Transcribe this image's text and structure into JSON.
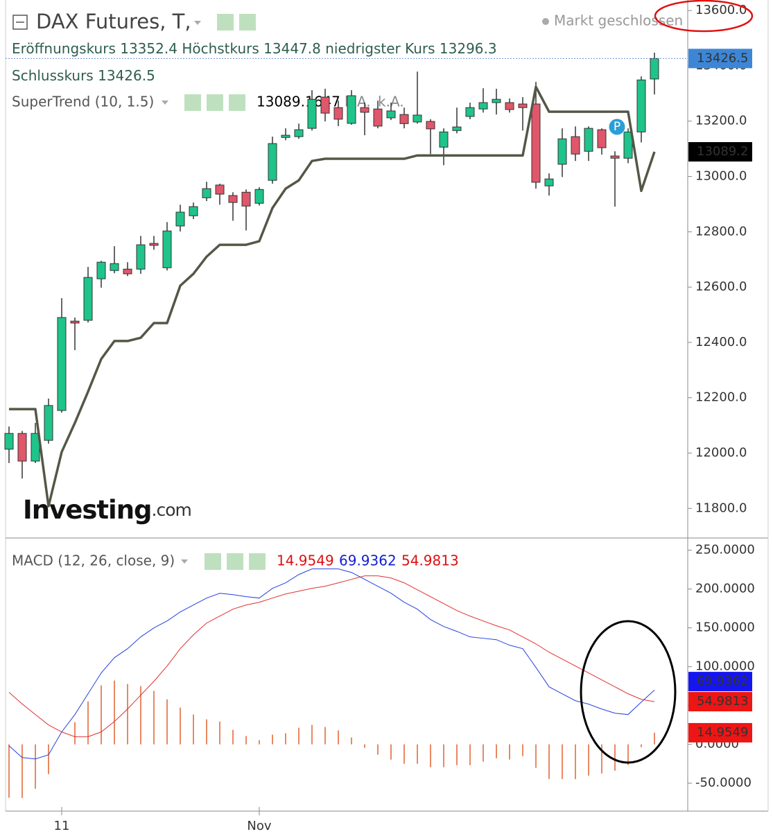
{
  "header": {
    "title": "DAX Futures, T,",
    "status": "Markt geschlossen",
    "open_label": "Eröffnungskurs",
    "high_label": "Höchstkurs",
    "low_label": "niedrigster Kurs",
    "close_label": "Schlusskurs"
  },
  "chart_data": [
    {
      "type": "candlestick",
      "categories": [
        null,
        null,
        null,
        null,
        "11",
        null,
        null,
        null,
        null,
        null,
        null,
        null,
        null,
        null,
        null,
        null,
        null,
        null,
        null,
        "Nov",
        null,
        null,
        null,
        null,
        null,
        null,
        null,
        null,
        null,
        null,
        null,
        null,
        null,
        null,
        null,
        null,
        null,
        null,
        null,
        null,
        null,
        null,
        null,
        null,
        null,
        null,
        null,
        null,
        null,
        null
      ],
      "open": [
        12014,
        12071,
        11971,
        12046,
        12154,
        12477,
        12480,
        12630,
        12660,
        12665,
        12665,
        12758,
        12670,
        12821,
        12858,
        12923,
        12969,
        12931,
        12943,
        12903,
        12986,
        13141,
        13144,
        13174,
        13287,
        13249,
        13192,
        13249,
        13244,
        13212,
        13224,
        13197,
        13199,
        13106,
        13166,
        13217,
        13244,
        13267,
        13267,
        13262,
        13262,
        12966,
        13044,
        13144,
        13091,
        13169,
        13074,
        13066,
        13161,
        13352.4
      ],
      "high": [
        12096,
        12080,
        12109,
        12197,
        12560,
        12490,
        12673,
        12695,
        12748,
        12690,
        12785,
        12785,
        12835,
        12898,
        12906,
        12981,
        12974,
        12943,
        12953,
        12961,
        13144,
        13174,
        13191,
        13312,
        13317,
        13274,
        13312,
        13267,
        13274,
        13267,
        13249,
        13379,
        13207,
        13174,
        13249,
        13267,
        13319,
        13317,
        13282,
        13287,
        13342,
        13011,
        13174,
        13181,
        13181,
        13174,
        13091,
        13174,
        13362,
        13447.8
      ],
      "low": [
        11964,
        11908,
        11964,
        12034,
        12146,
        12372,
        12472,
        12598,
        12650,
        12640,
        12648,
        12735,
        12660,
        12801,
        12846,
        12911,
        12898,
        12840,
        12805,
        12895,
        12974,
        13131,
        13136,
        13166,
        13199,
        13182,
        13187,
        13149,
        13174,
        13204,
        13174,
        13191,
        13081,
        13041,
        13156,
        13207,
        13231,
        13224,
        13231,
        13166,
        12956,
        12931,
        12998,
        13056,
        13056,
        13079,
        12891,
        13048,
        13123,
        13296.3
      ],
      "close": [
        12071,
        11971,
        12071,
        12172,
        12490,
        12470,
        12635,
        12690,
        12685,
        12648,
        12753,
        12751,
        12803,
        12871,
        12891,
        12956,
        12936,
        12906,
        12893,
        12953,
        13119,
        13149,
        13169,
        13279,
        13229,
        13207,
        13292,
        13232,
        13182,
        13237,
        13191,
        13222,
        13172,
        13161,
        13179,
        13249,
        13267,
        13279,
        13242,
        13249,
        12979,
        12991,
        13136,
        13081,
        13174,
        13104,
        13066,
        13161,
        13349,
        13426.5
      ],
      "up_color": "#1fc48a",
      "down_color": "#e0566a",
      "series": [
        {
          "name": "SuperTrend (10, 1.5)",
          "color": "#535846",
          "last_label": "13089.2",
          "na_labels": [
            "k.A.",
            "k.A."
          ],
          "values": [
            12159,
            12159,
            12159,
            11808,
            12004,
            12109,
            12222,
            12340,
            12405,
            12405,
            12417,
            12470,
            12470,
            12605,
            12648,
            12710,
            12753,
            12753,
            12753,
            12766,
            12886,
            12956,
            12986,
            13056,
            13064,
            13064,
            13064,
            13064,
            13064,
            13064,
            13064,
            13076,
            13076,
            13076,
            13076,
            13076,
            13076,
            13076,
            13076,
            13076,
            13324,
            13234,
            13234,
            13234,
            13234,
            13234,
            13234,
            13234,
            12948,
            13089.1647
          ]
        }
      ],
      "annotation": "P",
      "watermark": "Investing",
      "watermark_suffix": ".com",
      "ylim": [
        11693,
        13638
      ],
      "yticks": [
        {
          "value": 11800,
          "label": "11800.0"
        },
        {
          "value": 12000,
          "label": "12000.0"
        },
        {
          "value": 12200,
          "label": "12200.0"
        },
        {
          "value": 12400,
          "label": "12400.0"
        },
        {
          "value": 12600,
          "label": "12600.0"
        },
        {
          "value": 12800,
          "label": "12800.0"
        },
        {
          "value": 13000,
          "label": "13000.0"
        },
        {
          "value": 13200,
          "label": "13200.0"
        },
        {
          "value": 13400,
          "label": "13400.0"
        },
        {
          "value": 13600,
          "label": "13600.0"
        }
      ]
    },
    {
      "type": "macd",
      "title": "MACD (12, 26, close, 9)",
      "series": [
        {
          "style": "histogram",
          "color": "#e0602e",
          "values": [
            -68.8,
            -69,
            -57.2,
            -38.4,
            0,
            28.6,
            55.3,
            76,
            82.2,
            77.7,
            75,
            68.8,
            58,
            47.3,
            38.4,
            32.2,
            29.4,
            18.7,
            10.7,
            5.4,
            12.5,
            14.3,
            21.4,
            25,
            22.3,
            17.9,
            8.9,
            -4.5,
            -13.4,
            -19.7,
            -25,
            -25,
            -29.5,
            -29.4,
            -26.8,
            -26.8,
            -22.3,
            -17.9,
            -19.6,
            -15.2,
            -30.3,
            -44.6,
            -44.7,
            -44.7,
            -40.2,
            -37.5,
            -34,
            -26.7,
            -3.6,
            14.9549
          ]
        },
        {
          "style": "line",
          "color": "#2340e0",
          "values": [
            -1.8,
            -17,
            -18.8,
            -13.4,
            16,
            38.4,
            65.1,
            92,
            111.6,
            123.2,
            138.4,
            150,
            158.9,
            170.5,
            179.5,
            188.4,
            194.6,
            192.8,
            190.2,
            188.4,
            200.9,
            208,
            218.7,
            225.9,
            225.9,
            225.9,
            221.4,
            212.5,
            203.6,
            194.6,
            183,
            174.1,
            160.7,
            151.8,
            145.5,
            138.4,
            136.6,
            134.8,
            127.7,
            123.2,
            99.1,
            74.1,
            65.1,
            56.2,
            51.8,
            45.5,
            40.1,
            38.4,
            54.4,
            69.9362
          ]
        },
        {
          "style": "line",
          "color": "#e03030",
          "values": [
            67,
            52,
            38.4,
            25,
            16,
            9.8,
            9.8,
            16,
            29.4,
            45.5,
            63.4,
            81.2,
            100.9,
            123.2,
            141.1,
            156.2,
            165.2,
            174.1,
            179.5,
            183,
            188.4,
            193.7,
            197.3,
            200.9,
            203.6,
            208,
            212.5,
            217,
            217,
            214.3,
            208,
            199.1,
            190.2,
            181.2,
            172.3,
            165.2,
            158.9,
            152.7,
            147.3,
            138.4,
            129.4,
            118.7,
            109.8,
            100.9,
            92,
            83,
            74.1,
            65.1,
            58,
            54.9813
          ]
        }
      ],
      "ylim": [
        -86,
        264
      ],
      "yticks": [
        {
          "value": -50,
          "label": "-50.0000"
        },
        {
          "value": 0,
          "label": "0.0000"
        },
        {
          "value": 50,
          "label": "50.0000"
        },
        {
          "value": 100,
          "label": "100.0000"
        },
        {
          "value": 150,
          "label": "150.0000"
        },
        {
          "value": 200,
          "label": "200.0000"
        },
        {
          "value": 250,
          "label": "250.0000"
        }
      ]
    }
  ]
}
